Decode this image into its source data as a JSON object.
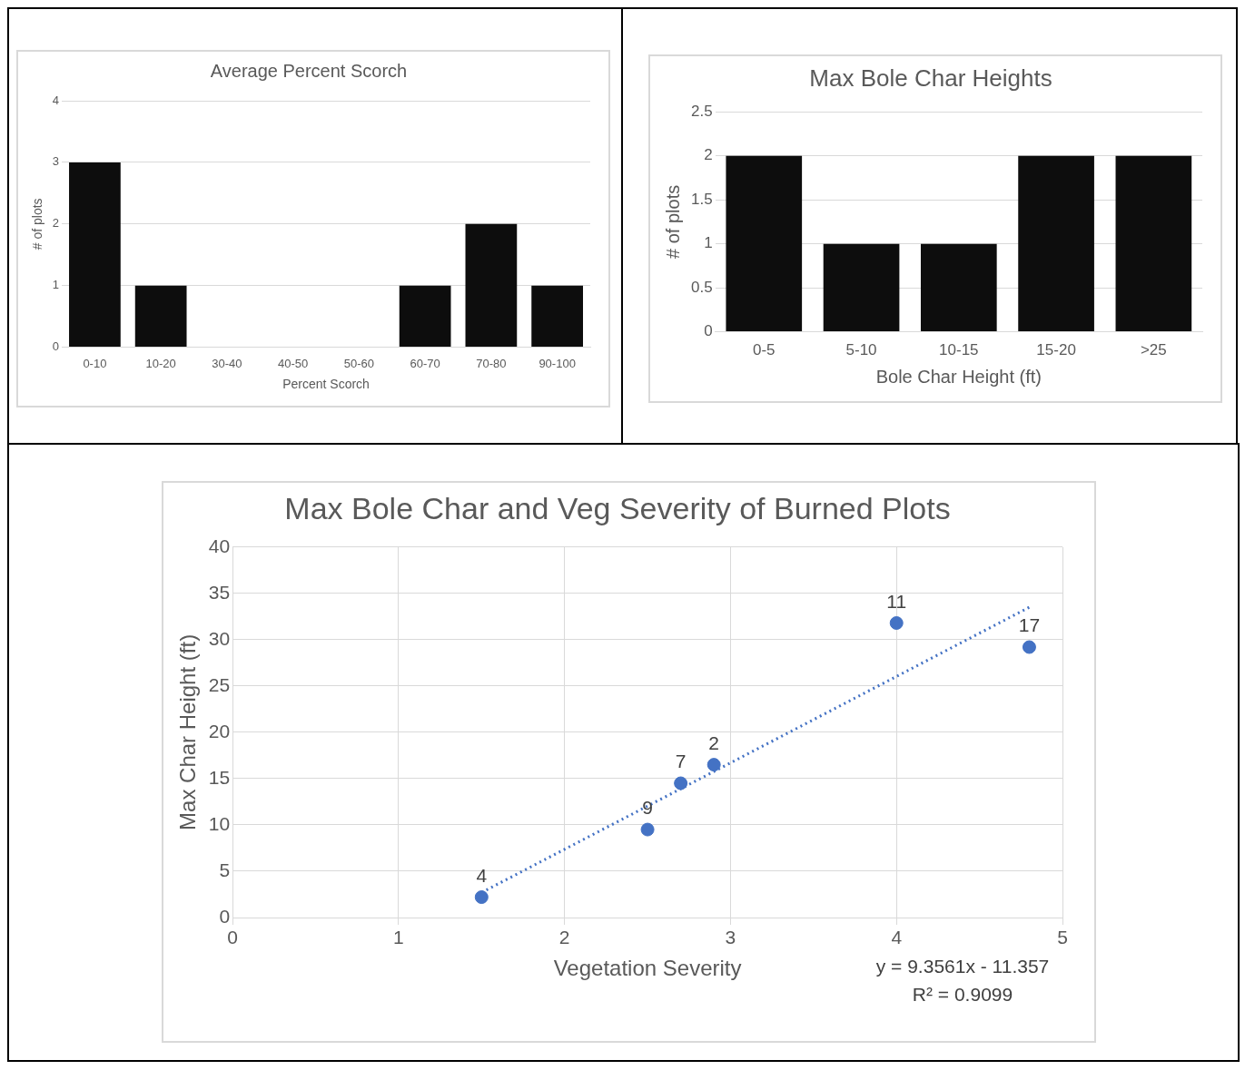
{
  "chart_data": [
    {
      "type": "bar",
      "title": "Average Percent Scorch",
      "xlabel": "Percent Scorch",
      "ylabel": "# of plots",
      "categories": [
        "0-10",
        "10-20",
        "30-40",
        "40-50",
        "50-60",
        "60-70",
        "70-80",
        "90-100"
      ],
      "values": [
        3,
        1,
        0,
        0,
        0,
        1,
        2,
        1
      ],
      "color": "#0d0d0d",
      "ylim": [
        0,
        4
      ],
      "yticks": [
        0,
        1,
        2,
        3,
        4
      ],
      "grid": "y"
    },
    {
      "type": "bar",
      "title": "Max Bole Char Heights",
      "xlabel": "Bole Char Height (ft)",
      "ylabel": "# of plots",
      "categories": [
        "0-5",
        "5-10",
        "10-15",
        "15-20",
        ">25"
      ],
      "values": [
        2,
        1,
        1,
        2,
        2
      ],
      "color": "#0d0d0d",
      "ylim": [
        0,
        2.5
      ],
      "yticks": [
        0,
        0.5,
        1,
        1.5,
        2,
        2.5
      ],
      "grid": "y"
    },
    {
      "type": "scatter",
      "title": "Max Bole Char and Veg Severity of Burned Plots",
      "xlabel": "Vegetation Severity",
      "ylabel": "Max Char Height (ft)",
      "xlim": [
        0,
        5
      ],
      "xticks": [
        0,
        1,
        2,
        3,
        4,
        5
      ],
      "ylim": [
        0,
        40
      ],
      "yticks": [
        0,
        5,
        10,
        15,
        20,
        25,
        30,
        35,
        40
      ],
      "grid": true,
      "marker": "circle",
      "annotations": [
        "y = 9.3561x - 11.357",
        "R² = 0.9099",
        {
          "text": "4",
          "x": 1.5,
          "y": 2.2
        },
        {
          "text": "9",
          "x": 2.5,
          "y": 9.5
        },
        {
          "text": "7",
          "x": 2.7,
          "y": 14.5
        },
        {
          "text": "2",
          "x": 2.9,
          "y": 16.5
        },
        {
          "text": "11",
          "x": 4.0,
          "y": 31.8
        },
        {
          "text": "17",
          "x": 4.8,
          "y": 29.2
        }
      ],
      "series": [
        {
          "type": "scatter",
          "color": "#4472c4",
          "x": [
            1.5,
            2.5,
            2.7,
            2.9,
            4.0,
            4.8
          ],
          "values": [
            2.2,
            9.5,
            14.5,
            16.5,
            31.8,
            29.2
          ]
        },
        {
          "type": "line",
          "color": "#4472c4",
          "line_style": "dotted",
          "marker": "none",
          "x": [
            1.5,
            4.8
          ],
          "values": [
            2.7,
            33.5
          ]
        }
      ]
    }
  ]
}
